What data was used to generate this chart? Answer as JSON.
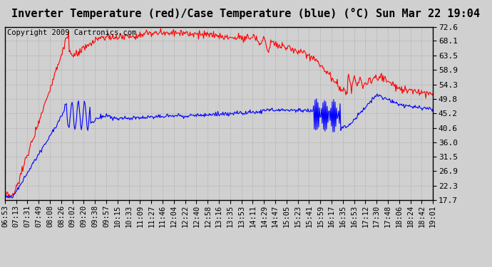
{
  "title": "Inverter Temperature (red)/Case Temperature (blue) (°C) Sun Mar 22 19:04",
  "copyright": "Copyright 2009 Cartronics.com",
  "background_color": "#d0d0d0",
  "plot_bg_color": "#d0d0d0",
  "grid_color": "#b0b0b0",
  "yticks": [
    17.7,
    22.3,
    26.9,
    31.5,
    36.0,
    40.6,
    45.2,
    49.8,
    54.3,
    58.9,
    63.5,
    68.1,
    72.6
  ],
  "ylim": [
    17.7,
    72.6
  ],
  "x_labels": [
    "06:53",
    "07:13",
    "07:31",
    "07:49",
    "08:08",
    "08:26",
    "09:02",
    "09:20",
    "09:38",
    "09:57",
    "10:15",
    "10:33",
    "11:09",
    "11:27",
    "11:46",
    "12:04",
    "12:22",
    "12:40",
    "12:58",
    "13:16",
    "13:35",
    "13:53",
    "14:11",
    "14:29",
    "14:47",
    "15:05",
    "15:23",
    "15:41",
    "15:59",
    "16:17",
    "16:35",
    "16:53",
    "17:12",
    "17:30",
    "17:48",
    "18:06",
    "18:24",
    "18:42",
    "19:01"
  ],
  "red_color": "#ff0000",
  "blue_color": "#0000ff",
  "title_fontsize": 11,
  "tick_fontsize": 8,
  "copyright_fontsize": 7.5
}
